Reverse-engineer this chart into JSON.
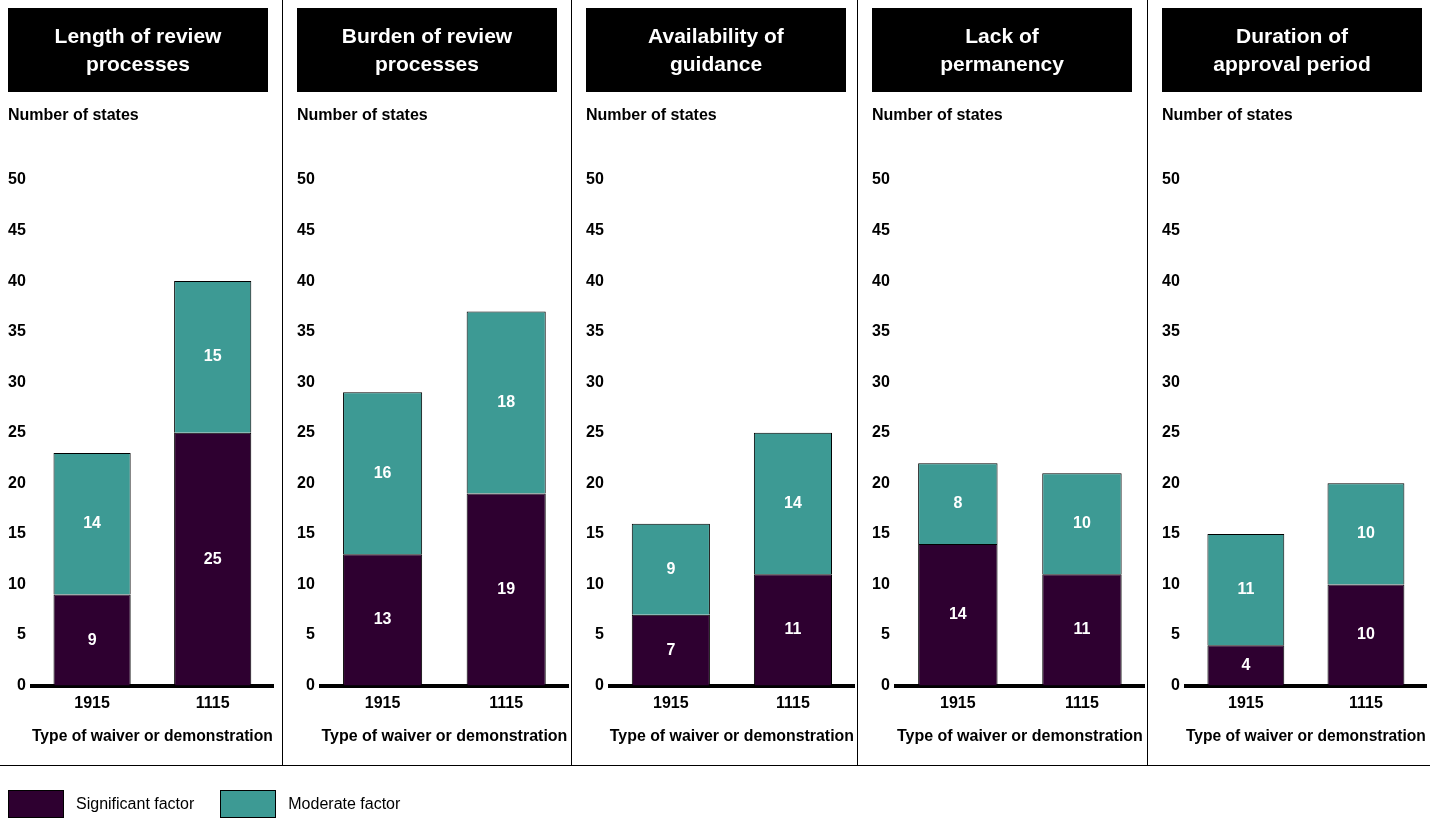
{
  "chart_data": [
    {
      "type": "bar",
      "title": "Length of review processes",
      "ylabel": "Number of states",
      "xlabel": "Type of waiver or demonstration",
      "categories": [
        "1915",
        "1115"
      ],
      "stacked": true,
      "data_labels": true,
      "legend": "bottom",
      "grid": false,
      "ylim": [
        0,
        50
      ],
      "yticks": [
        0,
        5,
        10,
        15,
        20,
        25,
        30,
        35,
        40,
        45,
        50
      ],
      "series": [
        {
          "name": "Significant factor",
          "color": "#2e0030",
          "values": [
            9,
            25
          ]
        },
        {
          "name": "Moderate factor",
          "color": "#3d9a94",
          "values": [
            14,
            15
          ]
        }
      ]
    },
    {
      "type": "bar",
      "title": "Burden of review processes",
      "ylabel": "Number of states",
      "xlabel": "Type of waiver or demonstration",
      "categories": [
        "1915",
        "1115"
      ],
      "stacked": true,
      "data_labels": true,
      "grid": false,
      "ylim": [
        0,
        50
      ],
      "yticks": [
        0,
        5,
        10,
        15,
        20,
        25,
        30,
        35,
        40,
        45,
        50
      ],
      "series": [
        {
          "color": "#2e0030",
          "values": [
            13,
            19
          ]
        },
        {
          "color": "#3d9a94",
          "values": [
            16,
            18
          ]
        }
      ]
    },
    {
      "type": "bar",
      "title": "Availability of guidance",
      "ylabel": "Number of states",
      "xlabel": "Type of waiver or demonstration",
      "categories": [
        "1915",
        "1115"
      ],
      "stacked": true,
      "data_labels": true,
      "grid": false,
      "ylim": [
        0,
        50
      ],
      "yticks": [
        0,
        5,
        10,
        15,
        20,
        25,
        30,
        35,
        40,
        45,
        50
      ],
      "series": [
        {
          "color": "#2e0030",
          "values": [
            7,
            11
          ]
        },
        {
          "color": "#3d9a94",
          "values": [
            9,
            14
          ]
        }
      ]
    },
    {
      "type": "bar",
      "title": "Lack of permanency",
      "ylabel": "Number of states",
      "xlabel": "Type of waiver or demonstration",
      "categories": [
        "1915",
        "1115"
      ],
      "stacked": true,
      "data_labels": true,
      "grid": false,
      "ylim": [
        0,
        50
      ],
      "yticks": [
        0,
        5,
        10,
        15,
        20,
        25,
        30,
        35,
        40,
        45,
        50
      ],
      "series": [
        {
          "color": "#2e0030",
          "values": [
            14,
            11
          ]
        },
        {
          "color": "#3d9a94",
          "values": [
            8,
            10
          ]
        }
      ]
    },
    {
      "type": "bar",
      "title": "Duration of approval period",
      "ylabel": "Number of states",
      "xlabel": "Type of waiver or demonstration",
      "categories": [
        "1915",
        "1115"
      ],
      "stacked": true,
      "data_labels": true,
      "grid": false,
      "ylim": [
        0,
        50
      ],
      "yticks": [
        0,
        5,
        10,
        15,
        20,
        25,
        30,
        35,
        40,
        45,
        50
      ],
      "series": [
        {
          "color": "#2e0030",
          "values": [
            4,
            10
          ]
        },
        {
          "color": "#3d9a94",
          "values": [
            11,
            10
          ]
        }
      ]
    }
  ]
}
